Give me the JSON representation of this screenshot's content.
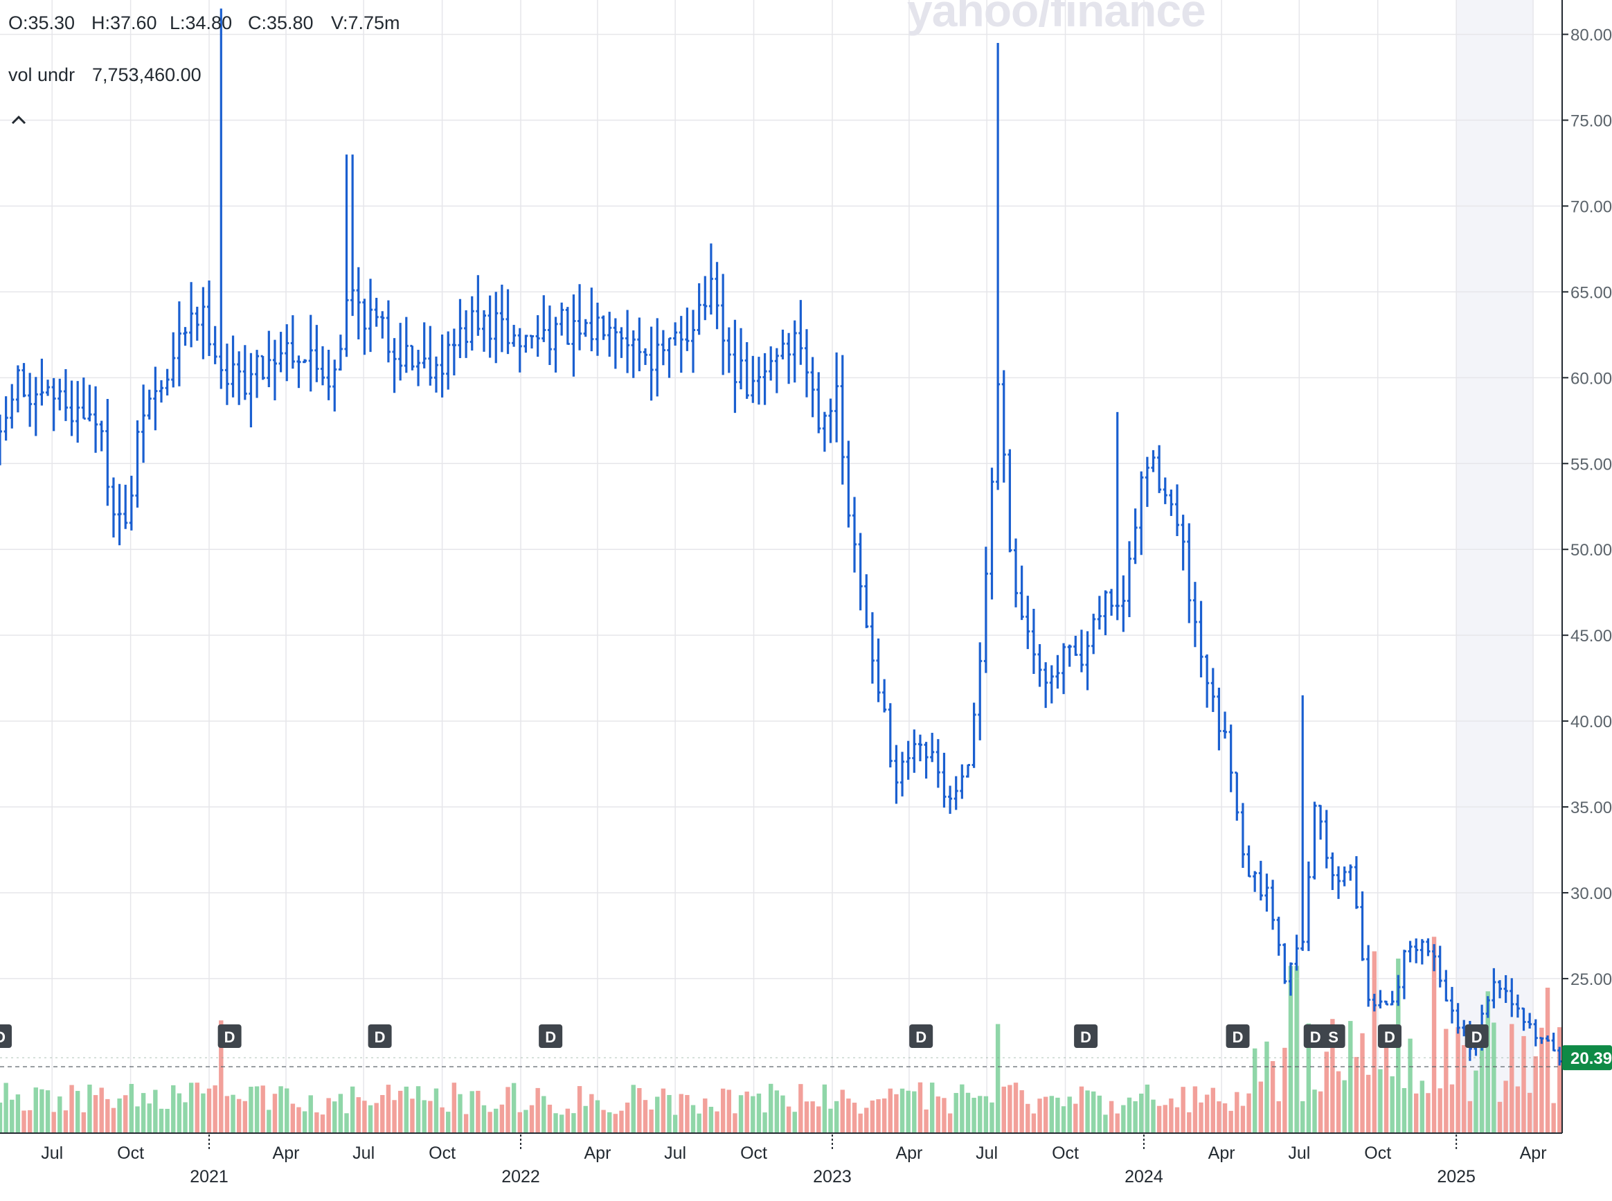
{
  "header": {
    "open": "O:35.30",
    "high": "H:37.60",
    "low": "L:34.80",
    "close": "C:35.80",
    "volume": "V:7.75m",
    "vol_label": "vol undr",
    "vol_value": "7,753,460.00",
    "collapse_icon": "chevron-up-icon"
  },
  "watermark": "yahoo/finance",
  "current_price_label": "20.39",
  "colors": {
    "price": "#1a5fd0",
    "vol_up": "#8fd6a8",
    "vol_down": "#f2a09a",
    "grid": "#e6e6ea",
    "shade": "#f3f4f9",
    "label_bg": "#0f8a46",
    "badge_bg": "#3f454c"
  },
  "chart_data": {
    "type": "ohlc-bar-with-volume",
    "ylim": [
      16.0,
      82.0
    ],
    "y_ticks": [
      25,
      30,
      35,
      40,
      45,
      50,
      55,
      60,
      65,
      70,
      75,
      80
    ],
    "y_tick_labels": [
      "25.00",
      "30.00",
      "35.00",
      "40.00",
      "45.00",
      "50.00",
      "55.00",
      "60.00",
      "65.00",
      "70.00",
      "75.00",
      "80.00"
    ],
    "x_range": [
      "2020-05-01",
      "2025-05-05"
    ],
    "x_ticks": [
      {
        "date": "2020-07-01",
        "label": "Jul"
      },
      {
        "date": "2020-10-01",
        "label": "Oct"
      },
      {
        "date": "2021-01-01",
        "label": "",
        "year": "2021"
      },
      {
        "date": "2021-04-01",
        "label": "Apr"
      },
      {
        "date": "2021-07-01",
        "label": "Jul"
      },
      {
        "date": "2021-10-01",
        "label": "Oct"
      },
      {
        "date": "2022-01-01",
        "label": "",
        "year": "2022"
      },
      {
        "date": "2022-04-01",
        "label": "Apr"
      },
      {
        "date": "2022-07-01",
        "label": "Jul"
      },
      {
        "date": "2022-10-01",
        "label": "Oct"
      },
      {
        "date": "2023-01-01",
        "label": "",
        "year": "2023"
      },
      {
        "date": "2023-04-01",
        "label": "Apr"
      },
      {
        "date": "2023-07-01",
        "label": "Jul"
      },
      {
        "date": "2023-10-01",
        "label": "Oct"
      },
      {
        "date": "2024-01-01",
        "label": "",
        "year": "2024"
      },
      {
        "date": "2024-04-01",
        "label": "Apr"
      },
      {
        "date": "2024-07-01",
        "label": "Jul"
      },
      {
        "date": "2024-10-01",
        "label": "Oct"
      },
      {
        "date": "2025-01-01",
        "label": "",
        "year": "2025"
      },
      {
        "date": "2025-04-01",
        "label": "Apr"
      }
    ],
    "shaded_from": "2025-01-01",
    "price_anchors": [
      [
        "2020-05-01",
        56
      ],
      [
        "2020-05-20",
        60
      ],
      [
        "2020-06-10",
        58
      ],
      [
        "2020-07-01",
        59
      ],
      [
        "2020-08-01",
        58
      ],
      [
        "2020-08-20",
        58
      ],
      [
        "2020-09-10",
        53
      ],
      [
        "2020-09-25",
        51
      ],
      [
        "2020-10-15",
        58
      ],
      [
        "2020-11-15",
        60
      ],
      [
        "2020-12-10",
        64
      ],
      [
        "2021-01-01",
        63
      ],
      [
        "2021-01-20",
        60
      ],
      [
        "2021-02-15",
        60
      ],
      [
        "2021-03-10",
        61
      ],
      [
        "2021-04-01",
        62
      ],
      [
        "2021-05-01",
        61
      ],
      [
        "2021-05-25",
        60
      ],
      [
        "2021-06-15",
        65
      ],
      [
        "2021-07-01",
        64
      ],
      [
        "2021-08-01",
        62
      ],
      [
        "2021-09-01",
        61
      ],
      [
        "2021-10-01",
        61
      ],
      [
        "2021-11-01",
        63
      ],
      [
        "2021-12-01",
        63
      ],
      [
        "2022-01-01",
        62
      ],
      [
        "2022-02-15",
        63
      ],
      [
        "2022-03-15",
        62
      ],
      [
        "2022-04-15",
        64
      ],
      [
        "2022-05-15",
        62
      ],
      [
        "2022-06-15",
        61
      ],
      [
        "2022-07-15",
        63
      ],
      [
        "2022-08-10",
        65
      ],
      [
        "2022-09-01",
        61
      ],
      [
        "2022-10-01",
        59
      ],
      [
        "2022-11-01",
        62
      ],
      [
        "2022-11-25",
        62
      ],
      [
        "2022-12-15",
        58
      ],
      [
        "2023-01-05",
        59
      ],
      [
        "2023-01-20",
        52
      ],
      [
        "2023-02-05",
        47
      ],
      [
        "2023-02-25",
        42
      ],
      [
        "2023-03-15",
        36
      ],
      [
        "2023-04-01",
        38
      ],
      [
        "2023-04-25",
        38
      ],
      [
        "2023-05-20",
        35
      ],
      [
        "2023-06-10",
        37
      ],
      [
        "2023-06-25",
        45
      ],
      [
        "2023-07-15",
        60
      ],
      [
        "2023-08-01",
        48
      ],
      [
        "2023-08-20",
        45
      ],
      [
        "2023-09-15",
        42
      ],
      [
        "2023-10-01",
        44
      ],
      [
        "2023-10-20",
        43
      ],
      [
        "2023-11-15",
        47
      ],
      [
        "2023-12-10",
        47
      ],
      [
        "2024-01-01",
        55
      ],
      [
        "2024-01-25",
        54
      ],
      [
        "2024-02-15",
        50
      ],
      [
        "2024-03-01",
        45
      ],
      [
        "2024-03-20",
        41
      ],
      [
        "2024-04-10",
        38
      ],
      [
        "2024-05-01",
        31
      ],
      [
        "2024-05-25",
        30
      ],
      [
        "2024-06-15",
        25
      ],
      [
        "2024-07-05",
        27
      ],
      [
        "2024-07-20",
        35
      ],
      [
        "2024-08-10",
        31
      ],
      [
        "2024-09-01",
        31
      ],
      [
        "2024-09-20",
        24
      ],
      [
        "2024-10-15",
        23
      ],
      [
        "2024-11-05",
        27
      ],
      [
        "2024-12-01",
        27
      ],
      [
        "2025-01-01",
        22
      ],
      [
        "2025-01-20",
        21
      ],
      [
        "2025-02-15",
        25
      ],
      [
        "2025-03-15",
        23
      ],
      [
        "2025-04-01",
        22
      ],
      [
        "2025-04-20",
        21
      ],
      [
        "2025-05-05",
        20.4
      ]
    ],
    "price_spikes": [
      [
        "2021-01-15",
        81.5
      ],
      [
        "2021-06-15",
        73
      ],
      [
        "2023-07-15",
        79.5
      ],
      [
        "2023-12-01",
        58
      ],
      [
        "2024-07-05",
        41.5
      ]
    ],
    "volume_ref_line": 0.55,
    "volume_spikes": [
      [
        "2021-01-15",
        1.55
      ],
      [
        "2023-07-15",
        1.5
      ],
      [
        "2024-06-25",
        2.3
      ],
      [
        "2024-09-25",
        2.5
      ],
      [
        "2024-10-25",
        2.4
      ],
      [
        "2024-12-05",
        2.7
      ],
      [
        "2025-02-05",
        1.95
      ],
      [
        "2025-04-20",
        2.0
      ]
    ],
    "events": [
      {
        "date": "2020-05-01",
        "label": "D"
      },
      {
        "date": "2021-01-25",
        "label": "D"
      },
      {
        "date": "2021-07-20",
        "label": "D"
      },
      {
        "date": "2022-02-05",
        "label": "D"
      },
      {
        "date": "2023-04-15",
        "label": "D"
      },
      {
        "date": "2023-10-25",
        "label": "D"
      },
      {
        "date": "2024-04-20",
        "label": "D"
      },
      {
        "date": "2024-07-20",
        "label": "D"
      },
      {
        "date": "2024-08-10",
        "label": "S"
      },
      {
        "date": "2024-10-15",
        "label": "D"
      },
      {
        "date": "2025-01-25",
        "label": "D"
      }
    ]
  }
}
